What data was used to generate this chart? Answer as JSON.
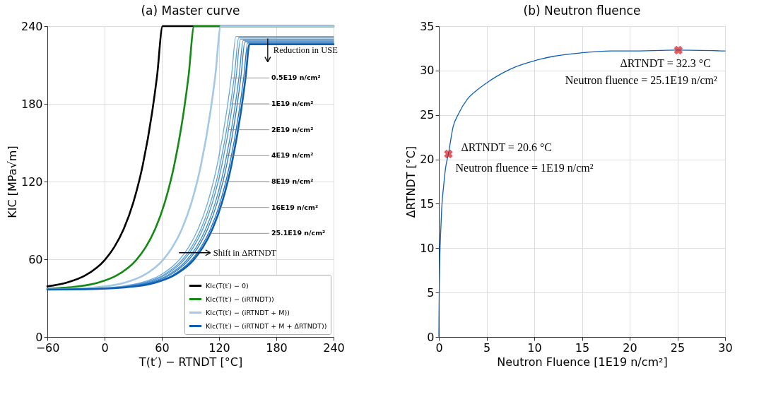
{
  "chart_data": [
    {
      "type": "line",
      "title": "(a) Master curve",
      "xlabel": "T(t′) − RTNDT [°C]",
      "ylabel": "KIC [MPa√m]",
      "xlim": [
        -60,
        240
      ],
      "xticks": [
        {
          "value": -60,
          "label": "−60"
        },
        0,
        60,
        120,
        180,
        240
      ],
      "ylim": [
        0,
        240
      ],
      "yticks": [
        0,
        60,
        120,
        180,
        240
      ],
      "grid": true,
      "legend": "bottom right",
      "series": [
        {
          "name": "KIc(T(t′) − 0)",
          "color": "#000000",
          "x": [
            -60,
            -40,
            -20,
            0,
            10,
            20,
            30,
            40,
            50,
            55,
            60.8,
            240
          ],
          "values": [
            39.1,
            41.9,
            47.6,
            59.3,
            69.2,
            83.3,
            103.6,
            132.7,
            174.3,
            201.5,
            240,
            240
          ]
        },
        {
          "name": "KIc(T(t′) − (iRTNDT))",
          "color": "#138a13",
          "x": [
            -60,
            -47,
            -27,
            -7,
            13,
            33,
            43,
            53,
            63,
            73,
            83,
            88,
            93.8,
            240
          ],
          "values": [
            37.3,
            37.8,
            39.1,
            41.9,
            47.6,
            59.3,
            69.2,
            83.3,
            103.6,
            132.7,
            174.3,
            201.5,
            240,
            240
          ]
        },
        {
          "name": "KIc(T(t′) − (iRTNDT + M))",
          "color": "#a5c8e6",
          "x": [
            -60,
            -39,
            -19,
            1,
            21,
            41,
            61,
            71,
            81,
            91,
            101,
            111,
            116,
            121.8,
            240
          ],
          "values": [
            36.8,
            37.1,
            37.8,
            39.1,
            41.9,
            47.6,
            59.3,
            69.2,
            83.3,
            103.6,
            132.7,
            174.3,
            201.5,
            240,
            240
          ]
        },
        {
          "color": "#6aa9dc",
          "x": [
            -60,
            -22,
            -2,
            18,
            38,
            58,
            78,
            88,
            98,
            108,
            118,
            128,
            133,
            137.7,
            240
          ],
          "values": [
            36.7,
            37.1,
            37.8,
            39.1,
            41.9,
            47.6,
            59.3,
            69.2,
            83.3,
            103.6,
            132.7,
            174.3,
            201.5,
            232,
            232
          ]
        },
        {
          "color": "#5a9ed6",
          "x": [
            -60,
            -19,
            1,
            21,
            41,
            61,
            81,
            91,
            101,
            111,
            121,
            131,
            136,
            140.6,
            240
          ],
          "values": [
            36.7,
            37.1,
            37.8,
            39.1,
            41.9,
            47.6,
            59.3,
            69.2,
            83.3,
            103.6,
            132.7,
            174.3,
            201.5,
            231,
            231
          ]
        },
        {
          "color": "#4b93cf",
          "x": [
            -60,
            -17,
            3,
            23,
            43,
            63,
            83,
            93,
            103,
            113,
            123,
            133,
            138,
            142.4,
            240
          ],
          "values": [
            36.7,
            37.1,
            37.8,
            39.1,
            41.9,
            47.6,
            59.3,
            69.2,
            83.3,
            103.6,
            132.7,
            174.3,
            201.5,
            230,
            230
          ]
        },
        {
          "color": "#3c87c8",
          "x": [
            -60,
            -14,
            6,
            26,
            46,
            66,
            86,
            96,
            106,
            116,
            126,
            136,
            141,
            145.3,
            240
          ],
          "values": [
            36.6,
            37.1,
            37.8,
            39.1,
            41.9,
            47.6,
            59.3,
            69.2,
            83.3,
            103.6,
            132.7,
            174.3,
            201.5,
            229,
            229
          ]
        },
        {
          "color": "#2d7bc0",
          "x": [
            -60,
            -12,
            8,
            28,
            48,
            68,
            88,
            98,
            108,
            118,
            128,
            138,
            143,
            147.1,
            240
          ],
          "values": [
            36.6,
            37.1,
            37.8,
            39.1,
            41.9,
            47.6,
            59.3,
            69.2,
            83.3,
            103.6,
            132.7,
            174.3,
            201.5,
            228,
            228
          ]
        },
        {
          "color": "#1f6fb8",
          "x": [
            -60,
            -9,
            11,
            31,
            51,
            71,
            91,
            101,
            111,
            121,
            131,
            141,
            146,
            150.0,
            240
          ],
          "values": [
            36.6,
            37.1,
            37.8,
            39.1,
            41.9,
            47.6,
            59.3,
            69.2,
            83.3,
            103.6,
            132.7,
            174.3,
            201.5,
            227,
            227
          ]
        },
        {
          "name": "KIc(T(t′) − (iRTNDT + M + ΔRTNDT))",
          "color": "#0f5fae",
          "x": [
            -60,
            -7,
            13,
            33,
            53,
            73,
            93,
            103,
            113,
            123,
            133,
            143,
            148,
            151.8,
            240
          ],
          "values": [
            36.6,
            37.1,
            37.8,
            39.1,
            41.9,
            47.6,
            59.3,
            69.2,
            83.3,
            103.6,
            132.7,
            174.3,
            201.5,
            226,
            226
          ]
        }
      ],
      "annotations": [
        {
          "text": "0.5E19 n/cm²",
          "x": 132.7,
          "y": 200
        },
        {
          "text": "1E19 n/cm²",
          "x": 132.1,
          "y": 180
        },
        {
          "text": "2E19 n/cm²",
          "x": 130.0,
          "y": 160
        },
        {
          "text": "4E19 n/cm²",
          "x": 128.0,
          "y": 140
        },
        {
          "text": "8E19 n/cm²",
          "x": 124.1,
          "y": 120
        },
        {
          "text": "16E19 n/cm²",
          "x": 119.5,
          "y": 100
        },
        {
          "text": "25.1E19 n/cm²",
          "x": 111.0,
          "y": 80
        },
        "Reduction in USE",
        "Shift in ΔRTNDT"
      ]
    },
    {
      "type": "line",
      "title": "(b) Neutron fluence",
      "xlabel": "Neutron Fluence [1E19 n/cm²]",
      "ylabel": "ΔRTNDT [°C]",
      "xlim": [
        0,
        30
      ],
      "xticks": [
        0,
        5,
        10,
        15,
        20,
        25,
        30
      ],
      "ylim": [
        0,
        35
      ],
      "yticks": [
        0,
        5,
        10,
        15,
        20,
        25,
        30,
        35
      ],
      "grid": true,
      "series": [
        {
          "color": "#0f5fb5",
          "x": [
            0,
            0.02,
            0.05,
            0.1,
            0.2,
            0.3,
            0.5,
            0.7,
            1,
            1.5,
            2,
            3,
            4,
            5,
            6,
            7,
            8,
            10,
            12,
            15,
            18,
            20,
            25,
            30
          ],
          "values": [
            0,
            3,
            6,
            9,
            12,
            14.5,
            17,
            19,
            20.6,
            23.7,
            25,
            26.8,
            27.8,
            28.6,
            29.3,
            29.9,
            30.4,
            31.1,
            31.6,
            32,
            32.2,
            32.2,
            32.3,
            32.2
          ]
        },
        {
          "type": "scatter",
          "color": "#d7191c",
          "marker": "cross",
          "x": [
            25.1,
            1
          ],
          "values": [
            32.3,
            20.6
          ]
        }
      ],
      "annotations": [
        {
          "text": "ΔRTNDT = 32.3 °C",
          "x": 25.1,
          "y": 32.3
        },
        {
          "text": "Neutron fluence = 25.1E19 n/cm²",
          "x": 25.1,
          "y": 32.3
        },
        {
          "text": "ΔRTNDT = 20.6 °C",
          "x": 1,
          "y": 20.6
        },
        {
          "text": "Neutron fluence = 1E19 n/cm²",
          "x": 1,
          "y": 20.6
        }
      ]
    }
  ]
}
